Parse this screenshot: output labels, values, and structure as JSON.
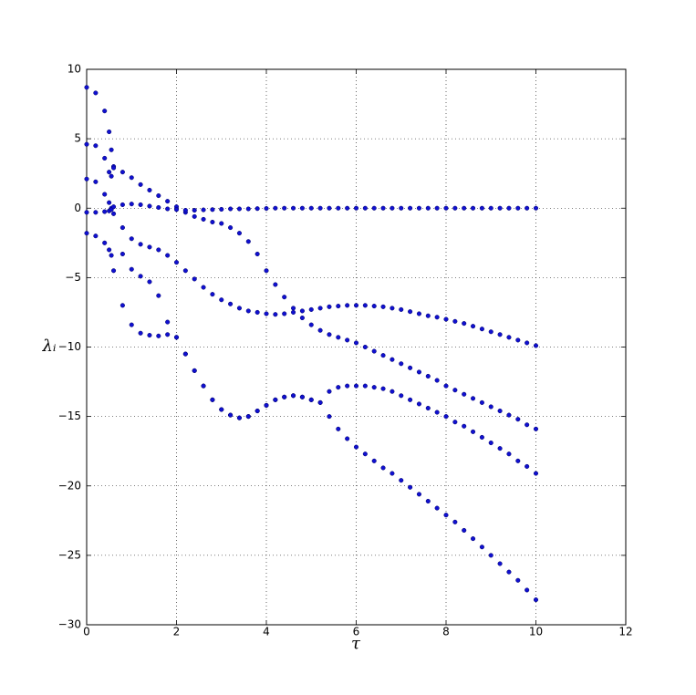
{
  "chart_data": {
    "type": "scatter",
    "xlabel": "τ",
    "ylabel": "λᵢ",
    "x": [
      0,
      0.2,
      0.4,
      0.5,
      0.55,
      0.6,
      0.8,
      1,
      1.2,
      1.4,
      1.6,
      1.8,
      2,
      2.2,
      2.4,
      2.6,
      2.8,
      3,
      3.2,
      3.4,
      3.6,
      3.8,
      4,
      4.2,
      4.4,
      4.6,
      4.8,
      5,
      5.2,
      5.4,
      5.6,
      5.8,
      6,
      6.2,
      6.4,
      6.6,
      6.8,
      7,
      7.2,
      7.4,
      7.6,
      7.8,
      8,
      8.2,
      8.4,
      8.6,
      8.8,
      9,
      9.2,
      9.4,
      9.6,
      9.8,
      10
    ],
    "series": [
      {
        "color": "#1010d0",
        "values": [
          8.7,
          8.3,
          7.0,
          5.5,
          4.2,
          3.0,
          2.6,
          2.2,
          1.7,
          1.3,
          0.9,
          0.5,
          0.1,
          -0.3,
          -0.6,
          -0.8,
          -1.0,
          -1.1,
          -1.4,
          -1.8,
          -2.4,
          -3.3,
          -4.5,
          -5.5,
          -6.4,
          -7.2,
          -7.9,
          -8.4,
          -8.8,
          -9.1,
          -9.3,
          -9.5,
          -9.7,
          -10.0,
          -10.3,
          -10.6,
          -10.9,
          -11.2,
          -11.5,
          -11.8,
          -12.1,
          -12.4,
          -12.8,
          -13.1,
          -13.4,
          -13.7,
          -14.0,
          -14.3,
          -14.6,
          -14.9,
          -15.2,
          -15.6,
          -15.9
        ]
      },
      {
        "color": "#1010d0",
        "values": [
          4.6,
          4.5,
          3.6,
          2.6,
          2.3,
          2.9,
          -3.3,
          -4.4,
          -4.9,
          -5.3,
          -6.3,
          -8.2,
          -9.3,
          -10.5,
          -11.7,
          -12.8,
          -13.8,
          -14.5,
          -14.9,
          -15.1,
          -15.0,
          -14.6,
          -14.2,
          -13.8,
          -13.6,
          -13.5,
          -13.6,
          -13.8,
          -14.0,
          -13.2,
          -12.9,
          -12.8,
          -12.8,
          -12.8,
          -12.9,
          -13.0,
          -13.2,
          -13.5,
          -13.8,
          -14.1,
          -14.4,
          -14.7,
          -15.0,
          -15.4,
          -15.7,
          -16.1,
          -16.5,
          -16.9,
          -17.3,
          -17.7,
          -18.2,
          -18.6,
          -19.1
        ]
      },
      {
        "color": "#1010d0",
        "values": [
          2.1,
          1.9,
          1.0,
          0.4,
          0.0,
          -0.4,
          -1.4,
          -2.2,
          -2.6,
          -2.8,
          -3.0,
          -3.4,
          -3.9,
          -4.5,
          -5.1,
          -5.7,
          -6.2,
          -6.6,
          -6.9,
          -7.2,
          -7.4,
          -7.5,
          -7.6,
          -7.65,
          -7.6,
          -7.5,
          -7.4,
          -7.3,
          -7.2,
          -7.1,
          -7.05,
          -7.0,
          -7.0,
          -7.0,
          -7.05,
          -7.1,
          -7.2,
          -7.3,
          -7.45,
          -7.6,
          -7.75,
          -7.85,
          -8.0,
          -8.15,
          -8.3,
          -8.5,
          -8.7,
          -8.9,
          -9.1,
          -9.3,
          -9.5,
          -9.7,
          -9.9
        ]
      },
      {
        "color": "#1010d0",
        "values": [
          -0.3,
          -0.3,
          -0.25,
          -0.2,
          -0.1,
          0.1,
          0.25,
          0.3,
          0.25,
          0.15,
          0.05,
          -0.05,
          -0.1,
          -0.15,
          -0.15,
          -0.12,
          -0.1,
          -0.08,
          -0.05,
          -0.05,
          -0.05,
          -0.03,
          -0.02,
          0,
          0,
          0,
          0,
          0,
          0,
          0,
          0,
          0,
          0,
          0,
          0,
          0,
          0,
          0,
          0,
          0,
          0,
          0,
          0,
          0,
          0,
          0,
          0,
          0,
          0,
          0,
          0,
          0,
          0
        ]
      },
      {
        "color": "#1010d0",
        "values": [
          -1.8,
          -2.0,
          -2.5,
          -3.0,
          -3.4,
          -4.5,
          -7.0,
          -8.4,
          -9.0,
          -9.15,
          -9.2,
          -9.1,
          -9.3,
          -10.5,
          -11.7,
          -12.8,
          -13.8,
          -14.5,
          -14.9,
          -15.1,
          -15.0,
          -14.6,
          -14.2,
          -13.8,
          -13.6,
          -13.5,
          -13.6,
          -13.8,
          -14.0,
          -15.0,
          -15.9,
          -16.6,
          -17.2,
          -17.7,
          -18.2,
          -18.7,
          -19.1,
          -19.6,
          -20.1,
          -20.6,
          -21.1,
          -21.6,
          -22.1,
          -22.6,
          -23.2,
          -23.8,
          -24.4,
          -25.0,
          -25.6,
          -26.2,
          -26.8,
          -27.5,
          -28.2
        ]
      }
    ],
    "xlim": [
      0,
      12
    ],
    "xticks": [
      0,
      2,
      4,
      6,
      8,
      10,
      12
    ],
    "ylim": [
      -30,
      10
    ],
    "yticks": [
      {
        "value": -30,
        "label": "−30"
      },
      {
        "value": -25,
        "label": "−25"
      },
      {
        "value": -20,
        "label": "−20"
      },
      {
        "value": -15,
        "label": "−15"
      },
      {
        "value": -10,
        "label": "−10"
      },
      {
        "value": -5,
        "label": "−5"
      },
      0,
      5,
      10
    ],
    "grid": true
  }
}
